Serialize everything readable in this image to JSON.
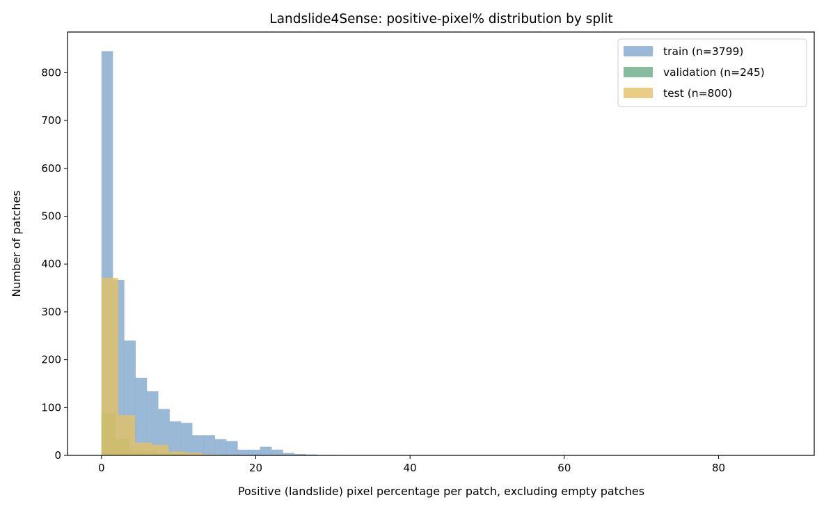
{
  "chart_data": {
    "type": "bar",
    "title": "Landslide4Sense: positive-pixel% distribution by split",
    "xlabel": "Positive (landslide) pixel percentage per patch, excluding empty patches",
    "ylabel": "Number of patches",
    "xlim": [
      -4.4,
      92.4
    ],
    "ylim": [
      0,
      885
    ],
    "xticks": [
      0,
      20,
      40,
      60,
      80
    ],
    "yticks": [
      0,
      100,
      200,
      300,
      400,
      500,
      600,
      700,
      800
    ],
    "grid": false,
    "legend_position": "top-right",
    "series": [
      {
        "name": "train (n=3799)",
        "color": "#7fa8cc",
        "bin_start": 0,
        "bin_width": 1.47,
        "values": [
          845,
          367,
          240,
          162,
          134,
          97,
          71,
          68,
          42,
          42,
          34,
          30,
          12,
          12,
          18,
          12,
          5,
          3,
          2,
          1,
          1,
          0,
          0,
          0,
          0,
          0,
          0,
          0,
          0,
          0,
          0,
          0,
          0,
          0,
          0,
          0,
          0,
          0,
          0,
          0,
          0,
          0,
          0,
          0,
          0,
          0,
          0,
          0,
          0,
          0,
          0,
          0,
          0,
          0,
          0,
          0,
          0,
          0,
          0,
          0
        ]
      },
      {
        "name": "validation (n=245)",
        "color": "#6aab86",
        "bin_start": 0,
        "bin_width": 1.8,
        "values": [
          88,
          35,
          10,
          8,
          5,
          3,
          2,
          1,
          1,
          0
        ]
      },
      {
        "name": "test (n=800)",
        "color": "#e3c065",
        "bin_start": 0,
        "bin_width": 2.17,
        "values": [
          371,
          84,
          27,
          22,
          8,
          6,
          2,
          1,
          0,
          0
        ]
      }
    ]
  },
  "legend": {
    "train": "train (n=3799)",
    "validation": "validation (n=245)",
    "test": "test (n=800)"
  }
}
